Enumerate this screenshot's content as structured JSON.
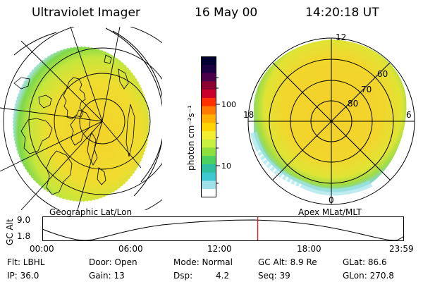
{
  "header": {
    "instrument": "Ultraviolet Imager",
    "date": "16 May 00",
    "time": "14:20:18 UT"
  },
  "left_panel": {
    "caption": "Geographic Lat/Lon"
  },
  "right_panel": {
    "caption": "Apex MLat/MLT",
    "mlt_labels": [
      "12",
      "18",
      "6",
      "0"
    ],
    "lat_labels": [
      "60",
      "70",
      "80"
    ]
  },
  "colorbar": {
    "unit_label": "photon cm⁻²s⁻¹",
    "ticks": [
      "100",
      "10"
    ],
    "colors": [
      "#000033",
      "#1a0040",
      "#4a004a",
      "#8a0030",
      "#c8002a",
      "#ff3000",
      "#ff7a00",
      "#ffb000",
      "#ffd400",
      "#f4ee30",
      "#c8f040",
      "#8ee040",
      "#4cd060",
      "#30c0a0",
      "#40c8d0",
      "#a0e0e8",
      "#ffffff"
    ]
  },
  "altitude_plot": {
    "ylabel": "GC Alt",
    "yticks": [
      "9.0",
      "1.8"
    ],
    "xticks": [
      "00:00",
      "06:00",
      "12:00",
      "18:00",
      "23:59"
    ],
    "current_time_fraction": 0.597,
    "marker_color": "#ff0000"
  },
  "footer": {
    "filter": "Flt: LBHL",
    "door": "Door: Open",
    "mode": "Mode: Normal",
    "gc_alt": "GC Alt: 8.9 Re",
    "glat": "GLat:  86.6",
    "ip": "IP: 36.0",
    "gain": "Gain: 13",
    "dsp_label": "Dsp:",
    "dsp_value": "4.2",
    "seq": "Seq: 39",
    "glon": "GLon: 270.8"
  },
  "colors": {
    "aurora_core": "#f6cf2a",
    "aurora_mid": "#d8e83a",
    "aurora_edge": "#7fd84a",
    "aurora_rim": "#9fe0e0"
  }
}
